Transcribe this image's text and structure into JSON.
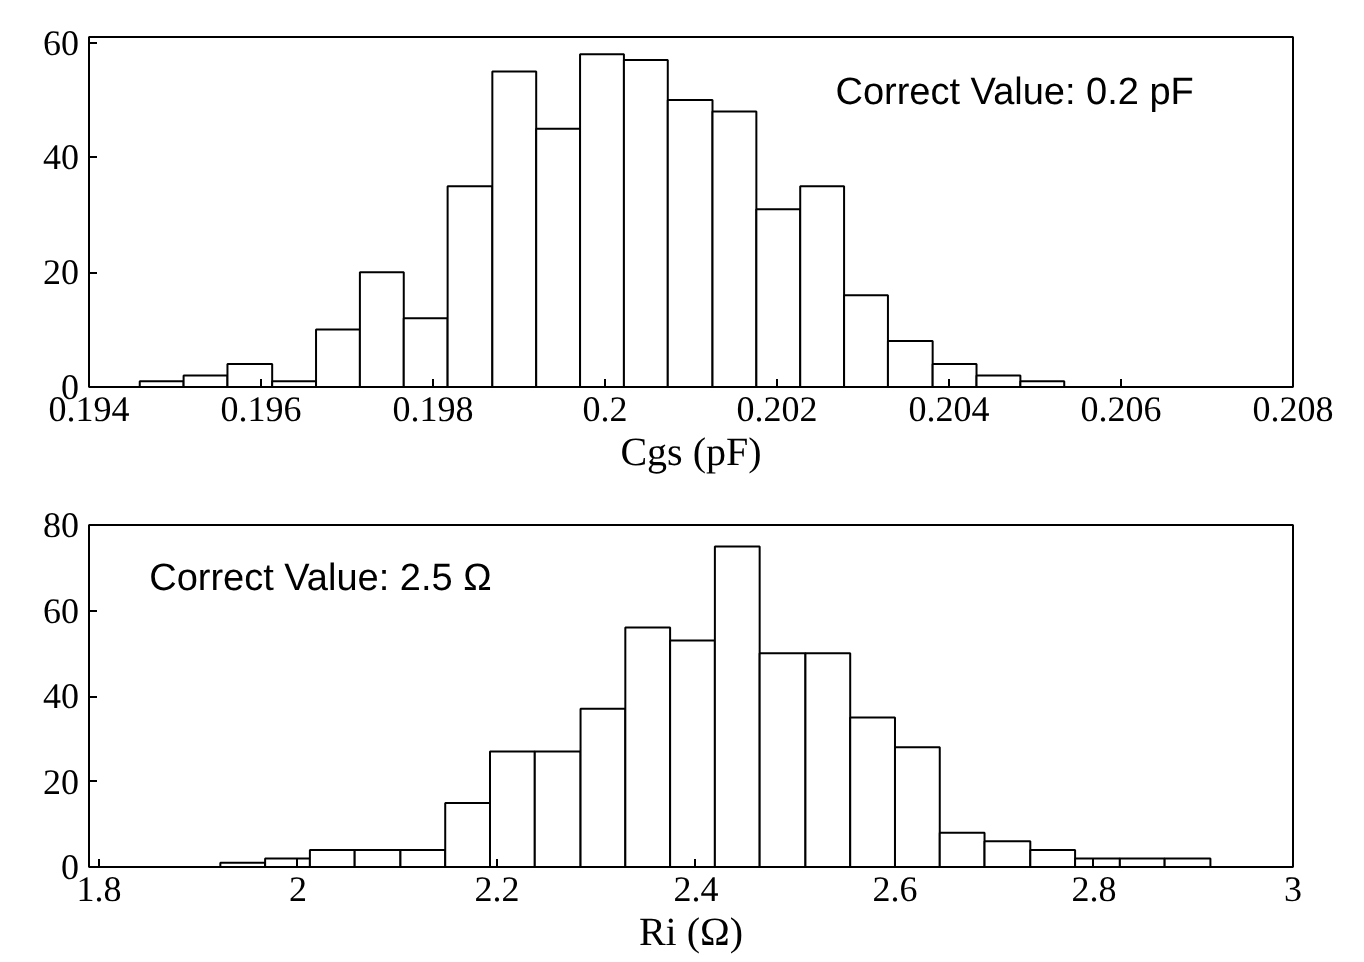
{
  "chart_data": [
    {
      "type": "histogram",
      "xlabel": "Cgs (pF)",
      "annotations": [
        "Correct Value: 0.2 pF"
      ],
      "bins": [
        0.19459,
        0.1951,
        0.19561,
        0.19613,
        0.19664,
        0.19715,
        0.19766,
        0.19817,
        0.19869,
        0.1992,
        0.19971,
        0.20022,
        0.20073,
        0.20125,
        0.20176,
        0.20227,
        0.20278,
        0.20329,
        0.20381,
        0.20432,
        0.20483,
        0.20534
      ],
      "values": [
        1,
        2,
        4,
        1,
        10,
        20,
        12,
        35,
        55,
        45,
        58,
        57,
        50,
        48,
        31,
        35,
        16,
        8,
        4,
        2,
        1
      ],
      "color": "#ffffff",
      "xlim": [
        0.194,
        0.208
      ],
      "xticks": [
        0.194,
        0.196,
        0.198,
        0.2,
        0.202,
        0.204,
        0.206,
        0.208
      ],
      "ylim": [
        0,
        61
      ],
      "yticks": [
        0,
        20,
        40,
        60
      ],
      "grid": false
    },
    {
      "type": "histogram",
      "xlabel": "Ri (Ω)",
      "annotations": [
        "Correct Value: 2.5 Ω"
      ],
      "bins": [
        1.922,
        1.967,
        2.012,
        2.057,
        2.103,
        2.148,
        2.193,
        2.238,
        2.284,
        2.329,
        2.374,
        2.419,
        2.464,
        2.51,
        2.555,
        2.6,
        2.645,
        2.69,
        2.736,
        2.781,
        2.826,
        2.871,
        2.917
      ],
      "values": [
        1,
        2,
        4,
        4,
        4,
        15,
        27,
        27,
        37,
        56,
        53,
        75,
        50,
        50,
        35,
        28,
        8,
        6,
        4,
        2,
        2,
        2
      ],
      "color": "#ffffff",
      "xlim": [
        1.79,
        3.0
      ],
      "xticks": [
        1.8,
        2,
        2.2,
        2.4,
        2.6,
        2.8,
        3
      ],
      "ylim": [
        0,
        80
      ],
      "yticks": [
        0,
        20,
        40,
        60,
        80
      ],
      "grid": false
    }
  ]
}
